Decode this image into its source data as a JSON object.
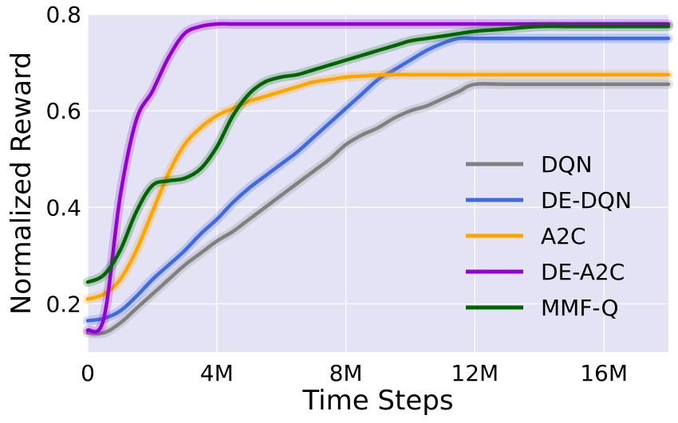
{
  "chart_data": {
    "type": "line",
    "title": "",
    "xlabel": "Time Steps",
    "ylabel": "Normalized Reward",
    "xlim": [
      0,
      18000000
    ],
    "ylim": [
      0.1,
      0.8
    ],
    "x_ticks": [
      {
        "value": 0,
        "label": "0"
      },
      {
        "value": 4000000,
        "label": "4M"
      },
      {
        "value": 8000000,
        "label": "8M"
      },
      {
        "value": 12000000,
        "label": "12M"
      },
      {
        "value": 16000000,
        "label": "16M"
      }
    ],
    "y_ticks": [
      {
        "value": 0.2,
        "label": "0.2"
      },
      {
        "value": 0.4,
        "label": "0.4"
      },
      {
        "value": 0.6,
        "label": "0.6"
      },
      {
        "value": 0.8,
        "label": "0.8"
      }
    ],
    "grid": true,
    "background": "#e3e3f5",
    "legend_position": "lower-right",
    "x": [
      0,
      500000,
      1000000,
      1500000,
      2000000,
      2500000,
      3000000,
      3500000,
      4000000,
      4500000,
      5000000,
      5500000,
      6000000,
      6500000,
      7000000,
      7500000,
      8000000,
      8500000,
      9000000,
      9500000,
      10000000,
      10500000,
      11000000,
      11500000,
      12000000,
      13000000,
      14000000,
      15000000,
      16000000,
      17000000,
      18000000
    ],
    "series": [
      {
        "name": "DQN",
        "color": "#808080",
        "values": [
          0.14,
          0.14,
          0.16,
          0.19,
          0.22,
          0.25,
          0.28,
          0.305,
          0.33,
          0.35,
          0.375,
          0.4,
          0.425,
          0.45,
          0.475,
          0.5,
          0.53,
          0.55,
          0.565,
          0.585,
          0.6,
          0.61,
          0.625,
          0.64,
          0.655,
          0.655,
          0.655,
          0.655,
          0.655,
          0.655,
          0.655
        ]
      },
      {
        "name": "DE-DQN",
        "color": "#4169e1",
        "values": [
          0.165,
          0.17,
          0.185,
          0.215,
          0.25,
          0.28,
          0.31,
          0.345,
          0.375,
          0.41,
          0.44,
          0.465,
          0.49,
          0.515,
          0.545,
          0.575,
          0.605,
          0.635,
          0.665,
          0.685,
          0.705,
          0.725,
          0.74,
          0.75,
          0.75,
          0.75,
          0.75,
          0.75,
          0.75,
          0.75,
          0.75
        ]
      },
      {
        "name": "A2C",
        "color": "#ffa500",
        "values": [
          0.21,
          0.22,
          0.25,
          0.31,
          0.39,
          0.47,
          0.53,
          0.565,
          0.59,
          0.605,
          0.62,
          0.63,
          0.64,
          0.65,
          0.66,
          0.665,
          0.67,
          0.672,
          0.674,
          0.675,
          0.675,
          0.675,
          0.675,
          0.675,
          0.675,
          0.675,
          0.675,
          0.675,
          0.675,
          0.675,
          0.675
        ]
      },
      {
        "name": "DE-A2C",
        "color": "#9400d3",
        "values": [
          0.145,
          0.17,
          0.42,
          0.58,
          0.64,
          0.71,
          0.76,
          0.775,
          0.78,
          0.78,
          0.78,
          0.78,
          0.78,
          0.78,
          0.78,
          0.78,
          0.78,
          0.78,
          0.78,
          0.78,
          0.78,
          0.78,
          0.78,
          0.78,
          0.78,
          0.78,
          0.78,
          0.78,
          0.78,
          0.78,
          0.78
        ]
      },
      {
        "name": "MMF-Q",
        "color": "#006400",
        "values": [
          0.245,
          0.26,
          0.31,
          0.39,
          0.445,
          0.455,
          0.46,
          0.48,
          0.525,
          0.59,
          0.635,
          0.66,
          0.67,
          0.675,
          0.685,
          0.695,
          0.705,
          0.715,
          0.725,
          0.735,
          0.745,
          0.75,
          0.755,
          0.76,
          0.765,
          0.77,
          0.775,
          0.775,
          0.775,
          0.775,
          0.775
        ]
      }
    ]
  }
}
